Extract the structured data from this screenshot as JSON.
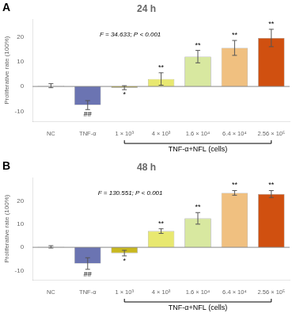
{
  "chart_data": [
    {
      "type": "bar",
      "panel_label": "A",
      "title": "24 h",
      "categories": [
        "NC",
        "TNF-α",
        "1 × 10³",
        "4 × 10³",
        "1.6 × 10⁴",
        "6.4 × 10⁴",
        "2.56 × 10⁵"
      ],
      "values": [
        0.3,
        -7.5,
        -0.5,
        3.0,
        12.0,
        15.5,
        19.5
      ],
      "errors": [
        0.8,
        1.8,
        0.8,
        2.5,
        2.5,
        3.0,
        3.5
      ],
      "colors": [
        "#f5f5f5",
        "#6b74b2",
        "#c8b820",
        "#e8e870",
        "#d8e8a0",
        "#f0c080",
        "#d05010"
      ],
      "ylim": [
        -14,
        27
      ],
      "yticks": [
        -10,
        0,
        10,
        20
      ],
      "ylabel": "Proliferative rate (100%)",
      "grid": false,
      "annotations": [
        {
          "text": "F = 34.633; P < 0.001"
        },
        {
          "category": "TNF-α",
          "text": "##"
        },
        {
          "category": "1 × 10³",
          "text": "*"
        },
        {
          "category": "4 × 10³",
          "text": "**"
        },
        {
          "category": "1.6 × 10⁴",
          "text": "**"
        },
        {
          "category": "6.4 × 10⁴",
          "text": "**"
        },
        {
          "category": "2.56 × 10⁵",
          "text": "**"
        },
        {
          "text": "TNF-α+NFL (cells)",
          "from": "1 × 10³",
          "to": "2.56 × 10⁵"
        }
      ]
    },
    {
      "type": "bar",
      "panel_label": "B",
      "title": "48 h",
      "categories": [
        "NC",
        "TNF-α",
        "1 × 10³",
        "4 × 10³",
        "1.6 × 10⁴",
        "6.4 × 10⁴",
        "2.56 × 10⁵"
      ],
      "values": [
        0.2,
        -7.0,
        -2.5,
        7.0,
        12.5,
        23.5,
        23.0
      ],
      "errors": [
        0.5,
        2.5,
        1.2,
        1.0,
        2.5,
        1.0,
        1.5
      ],
      "colors": [
        "#f5f5f5",
        "#6b74b2",
        "#c8b820",
        "#e8e870",
        "#d8e8a0",
        "#f0c080",
        "#d05010"
      ],
      "ylim": [
        -14,
        30
      ],
      "yticks": [
        -10,
        0,
        10,
        20
      ],
      "ylabel": "Proliferative rate (100%)",
      "grid": false,
      "annotations": [
        {
          "text": "F = 130.551; P < 0.001"
        },
        {
          "category": "TNF-α",
          "text": "##"
        },
        {
          "category": "1 × 10³",
          "text": "*"
        },
        {
          "category": "4 × 10³",
          "text": "**"
        },
        {
          "category": "1.6 × 10⁴",
          "text": "**"
        },
        {
          "category": "6.4 × 10⁴",
          "text": "**"
        },
        {
          "category": "2.56 × 10⁵",
          "text": "**"
        },
        {
          "text": "TNF-α+NFL (cells)",
          "from": "1 × 10³",
          "to": "2.56 × 10⁵"
        }
      ]
    }
  ]
}
